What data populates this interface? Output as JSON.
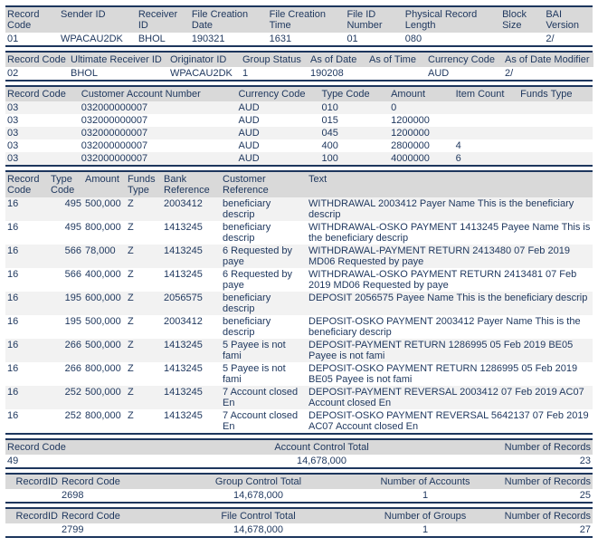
{
  "colors": {
    "text": "#1d365d",
    "header_bg": "#d9d9d9",
    "row_alt_bg": "#f2f2f2",
    "border": "#1d365d"
  },
  "t1": {
    "headers": [
      "Record Code",
      "Sender ID",
      "Receiver ID",
      "File Creation Date",
      "File Creation Time",
      "File ID Number",
      "Physical Record Length",
      "Block Size",
      "BAI Version"
    ],
    "row": [
      "01",
      "WPACAU2DK",
      "BHOL",
      "190321",
      "1631",
      "01",
      "080",
      "",
      "2/"
    ]
  },
  "t2": {
    "headers": [
      "Record Code",
      "Ultimate Receiver ID",
      "Originator ID",
      "Group Status",
      "As of Date",
      "As of Time",
      "Currency Code",
      "As of Date Modifier"
    ],
    "row": [
      "02",
      "BHOL",
      "WPACAU2DK",
      "1",
      "190208",
      "",
      "AUD",
      "2/"
    ]
  },
  "t3": {
    "headers": [
      "Record Code",
      "Customer Account Number",
      "Currency Code",
      "Type Code",
      "Amount",
      "Item Count",
      "Funds Type"
    ],
    "rows": [
      [
        "03",
        "032000000007",
        "AUD",
        "010",
        "0",
        "",
        ""
      ],
      [
        "03",
        "032000000007",
        "AUD",
        "015",
        "1200000",
        "",
        ""
      ],
      [
        "03",
        "032000000007",
        "AUD",
        "045",
        "1200000",
        "",
        ""
      ],
      [
        "03",
        "032000000007",
        "AUD",
        "400",
        "2800000",
        "4",
        ""
      ],
      [
        "03",
        "032000000007",
        "AUD",
        "100",
        "4000000",
        "6",
        ""
      ]
    ]
  },
  "t4": {
    "headers": [
      "Record Code",
      "Type Code",
      "Amount",
      "Funds Type",
      "Bank Reference",
      "Customer Reference",
      "Text"
    ],
    "rows": [
      [
        "16",
        "495",
        "500,000",
        "Z",
        "2003412",
        "beneficiary descrip",
        "WITHDRAWAL 2003412 Payer Name This is the beneficiary descrip"
      ],
      [
        "16",
        "495",
        "800,000",
        "Z",
        "1413245",
        "beneficiary descrip",
        "WITHDRAWAL-OSKO PAYMENT 1413245 Payee Name This is the beneficiary descrip"
      ],
      [
        "16",
        "566",
        "78,000",
        "Z",
        "1413245",
        "6 Requested by paye",
        "WITHDRAWAL-PAYMENT RETURN 2413480 07 Feb 2019 MD06 Requested by paye"
      ],
      [
        "16",
        "566",
        "400,000",
        "Z",
        "1413245",
        "6 Requested by paye",
        "WITHDRAWAL-OSKO PAYMENT RETURN 2413481 07 Feb 2019 MD06 Requested by paye"
      ],
      [
        "16",
        "195",
        "600,000",
        "Z",
        "2056575",
        "beneficiary descrip",
        "DEPOSIT 2056575 Payee Name This is the beneficiary descrip"
      ],
      [
        "16",
        "195",
        "500,000",
        "Z",
        "2003412",
        "beneficiary descrip",
        "DEPOSIT-OSKO PAYMENT 2003412 Payer Name This is the beneficiary descrip"
      ],
      [
        "16",
        "266",
        "500,000",
        "Z",
        "1413245",
        "5 Payee is not fami",
        "DEPOSIT-PAYMENT RETURN 1286995 05 Feb 2019 BE05 Payee is not fami"
      ],
      [
        "16",
        "266",
        "800,000",
        "Z",
        "1413245",
        "5 Payee is not fami",
        "DEPOSIT-OSKO PAYMENT RETURN 1286995 05 Feb 2019 BE05 Payee is not fami"
      ],
      [
        "16",
        "252",
        "500,000",
        "Z",
        "1413245",
        "7 Account closed En",
        "DEPOSIT-PAYMENT REVERSAL 2003412 07 Feb 2019 AC07 Account closed En"
      ],
      [
        "16",
        "252",
        "800,000",
        "Z",
        "1413245",
        "7 Account closed En",
        "DEPOSIT-OSKO PAYMENT REVERSAL 5642137 07 Feb 2019 AC07 Account closed En"
      ]
    ]
  },
  "t5": {
    "headers": [
      "Record Code",
      "Account Control Total",
      "Number of Records"
    ],
    "row": [
      "49",
      "14,678,000",
      "23"
    ]
  },
  "t6": {
    "headers": [
      "RecordID",
      "Record Code",
      "Group Control Total",
      "Number of Accounts",
      "Number of Records"
    ],
    "row": [
      "",
      "2698",
      "14,678,000",
      "1",
      "25"
    ]
  },
  "t7": {
    "headers": [
      "RecordID",
      "Record Code",
      "File Control Total",
      "Number of Groups",
      "Number of Records"
    ],
    "row": [
      "",
      "2799",
      "14,678,000",
      "1",
      "27"
    ]
  }
}
